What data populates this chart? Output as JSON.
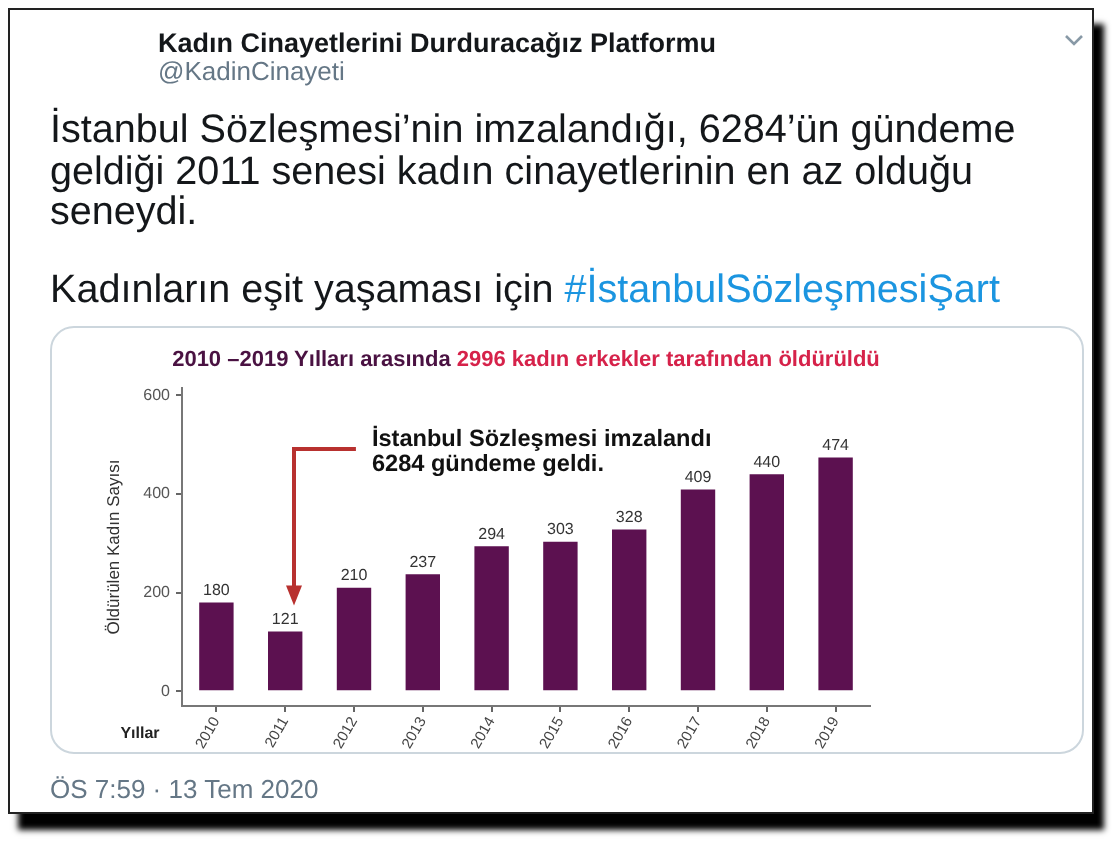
{
  "chart_data": {
    "type": "bar",
    "title": "2010 –2019 Yılları arasında",
    "subtitle": "2996 kadın erkekler tarafından öldürüldü",
    "xlabel": "Yıllar",
    "ylabel": "Öldürülen Kadın Sayısı",
    "categories": [
      "2010",
      "2011",
      "2012",
      "2013",
      "2014",
      "2015",
      "2016",
      "2017",
      "2018",
      "2019"
    ],
    "values": [
      180,
      121,
      210,
      237,
      294,
      303,
      328,
      409,
      440,
      474
    ],
    "color": "#5c1150",
    "ylim": [
      -30,
      615
    ],
    "yticks": [
      0,
      200,
      400,
      600
    ],
    "grid": false,
    "data_labels": true,
    "annotations": [
      "Kadın Cinayetlerini Durduracağız Platformu",
      "@KadinCinayeti",
      "İstanbul Sözleşmesi’nin imzalandığı, 6284’ün gündeme geldiği 2011 senesi kadın cinayetlerinin en az olduğu seneydi.",
      "Kadınların eşit yaşaması için",
      "#İstanbulSözleşmesiŞart",
      "İstanbul Sözleşmesi imzalandı\n6284 gündeme geldi.",
      "ÖS 7:59 · 13 Tem 2020"
    ]
  }
}
